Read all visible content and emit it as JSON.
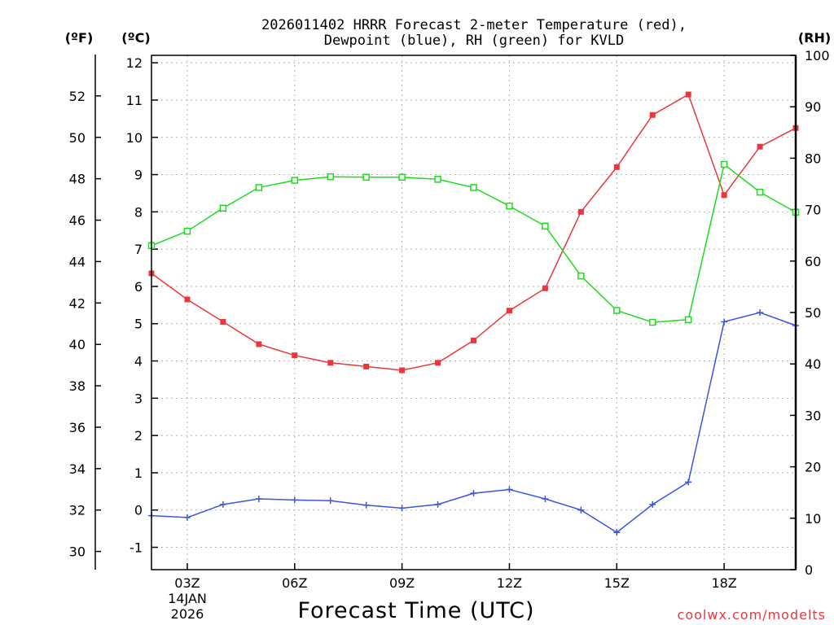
{
  "chart_data": {
    "type": "line",
    "title_line1": "2026011402 HRRR Forecast 2-meter Temperature (red),",
    "title_line2": "Dewpoint (blue), RH (green) for KVLD",
    "xlabel": "Forecast Time (UTC)",
    "date_label_day": "14JAN",
    "date_label_year": "2026",
    "watermark": "coolwx.com/modelts",
    "left_f_label": "(ºF)",
    "left_c_label": "(ºC)",
    "right_label": "(RH)",
    "x_hours": [
      2,
      3,
      4,
      5,
      6,
      7,
      8,
      9,
      10,
      11,
      12,
      13,
      14,
      15,
      16,
      17,
      18,
      19,
      20
    ],
    "x_range": [
      2,
      20
    ],
    "x_ticks": [
      {
        "hour": 3,
        "label": "03Z"
      },
      {
        "hour": 6,
        "label": "06Z"
      },
      {
        "hour": 9,
        "label": "09Z"
      },
      {
        "hour": 12,
        "label": "12Z"
      },
      {
        "hour": 15,
        "label": "15Z"
      },
      {
        "hour": 18,
        "label": "18Z"
      }
    ],
    "ylim_c": [
      -1.6,
      12.2
    ],
    "yticks_c": [
      -1,
      0,
      1,
      2,
      3,
      4,
      5,
      6,
      7,
      8,
      9,
      10,
      11,
      12
    ],
    "yticks_f": [
      30,
      32,
      34,
      36,
      38,
      40,
      42,
      44,
      46,
      48,
      50,
      52
    ],
    "ylim_rh": [
      0,
      100
    ],
    "yticks_rh": [
      0,
      10,
      20,
      30,
      40,
      50,
      60,
      70,
      80,
      90,
      100
    ],
    "series": [
      {
        "name": "Temperature",
        "color": "#e8383d",
        "units": "C",
        "marker": "filled-square",
        "values": [
          6.35,
          5.65,
          5.05,
          4.45,
          4.15,
          3.95,
          3.85,
          3.75,
          3.95,
          4.55,
          5.35,
          5.95,
          8.0,
          9.2,
          10.6,
          11.15,
          8.45,
          9.75,
          10.25
        ]
      },
      {
        "name": "Dewpoint",
        "color": "#3a56e0",
        "units": "C",
        "marker": "plus",
        "values": [
          -0.15,
          -0.2,
          0.15,
          0.3,
          0.27,
          0.25,
          0.13,
          0.05,
          0.15,
          0.45,
          0.55,
          0.3,
          0.0,
          -0.6,
          0.15,
          0.75,
          5.05,
          5.3,
          4.95
        ]
      },
      {
        "name": "RH",
        "color": "#1fdc1f",
        "units": "%",
        "marker": "open-square",
        "values": [
          63,
          65.8,
          70.3,
          74.3,
          75.7,
          76.4,
          76.3,
          76.3,
          75.9,
          74.3,
          70.7,
          66.8,
          57.1,
          50.4,
          48.1,
          48.6,
          78.8,
          73.4,
          69.5
        ]
      }
    ]
  }
}
